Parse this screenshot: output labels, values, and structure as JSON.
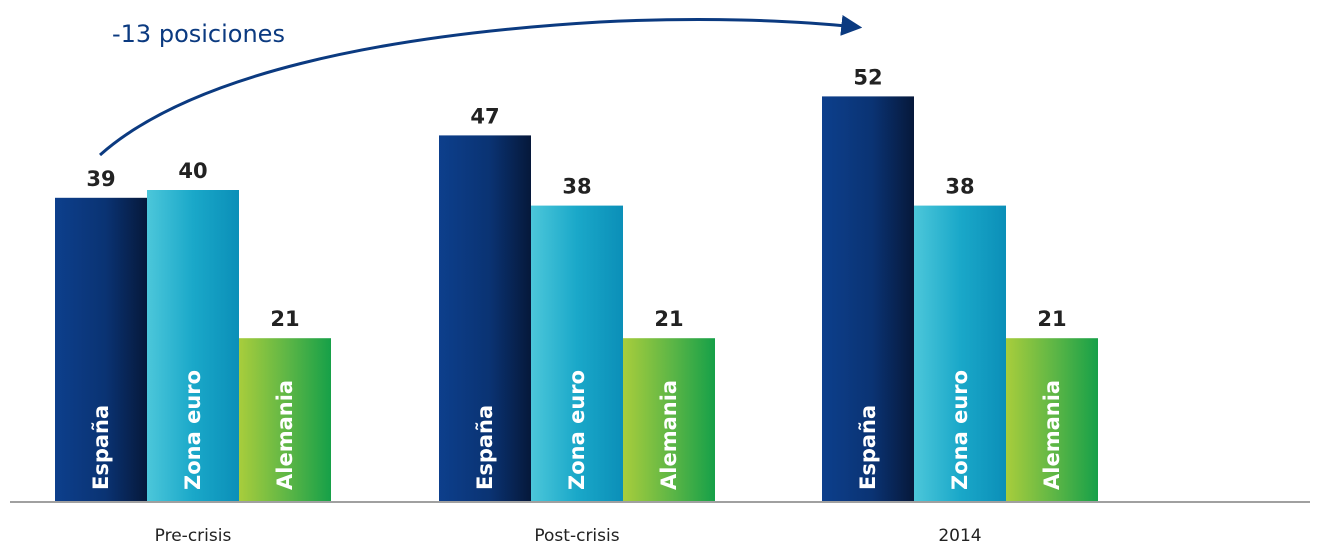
{
  "chart_data": {
    "type": "bar",
    "categories": [
      "Pre-crisis",
      "Post-crisis",
      "2014"
    ],
    "series": [
      {
        "name": "España",
        "values": [
          39,
          47,
          52
        ],
        "color": "#0b3a80"
      },
      {
        "name": "Zona euro",
        "values": [
          40,
          38,
          38
        ],
        "color": "#16a3c8"
      },
      {
        "name": "Alemania",
        "values": [
          21,
          21,
          21
        ],
        "color": "#5cb540"
      }
    ],
    "annotation": {
      "text": "-13 posiciones",
      "color": "#0b3a80"
    },
    "ylim": [
      0,
      60
    ],
    "grid": false
  }
}
